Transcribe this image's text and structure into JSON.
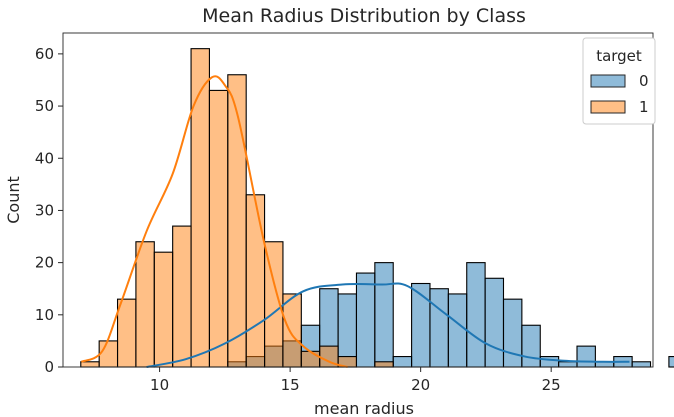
{
  "chart_data": {
    "type": "histogram",
    "title": "Mean Radius Distribution by Class",
    "xlabel": "mean radius",
    "ylabel": "Count",
    "xlim": [
      6.3,
      28.9
    ],
    "ylim": [
      0,
      64
    ],
    "xticks": [
      10,
      15,
      20,
      25
    ],
    "yticks": [
      0,
      10,
      20,
      30,
      40,
      50,
      60
    ],
    "grid": false,
    "bin_start": 6.981,
    "bin_width": 0.704,
    "legend": {
      "title": "target",
      "placement": "top-right"
    },
    "series": [
      {
        "name": "0",
        "color": "#1f77b4",
        "counts": [
          0,
          0,
          0,
          0,
          0,
          0,
          0,
          0,
          1,
          2,
          4,
          5,
          8,
          15,
          14,
          18,
          20,
          2,
          16,
          15,
          14,
          20,
          17,
          13,
          8,
          2,
          1,
          4,
          1,
          2,
          1,
          0,
          2
        ],
        "kde": {
          "x": [
            9.5,
            11,
            12.5,
            14,
            15.5,
            17,
            18.5,
            19.5,
            21,
            22.5,
            24,
            25.5,
            27,
            28
          ],
          "y": [
            0,
            1.5,
            4.5,
            9,
            14.5,
            15.8,
            15.8,
            15.5,
            10,
            4.5,
            2,
            1.2,
            1,
            1
          ]
        }
      },
      {
        "name": "1",
        "color": "#ff7f0e",
        "counts": [
          1,
          5,
          13,
          24,
          22,
          27,
          61,
          53,
          56,
          33,
          24,
          14,
          3,
          4,
          2,
          0,
          1,
          0,
          0,
          0,
          0,
          0,
          0,
          0,
          0,
          0,
          0,
          0,
          0,
          0,
          0,
          0,
          0
        ],
        "kde": {
          "x": [
            7,
            7.8,
            8.5,
            9.5,
            10.5,
            11.3,
            12,
            12.5,
            13,
            14,
            14.8,
            15.5,
            16.5,
            17.2
          ],
          "y": [
            1,
            3,
            12,
            26,
            37,
            50,
            55.5,
            54,
            48,
            24,
            9,
            4,
            1,
            0
          ]
        }
      }
    ]
  }
}
